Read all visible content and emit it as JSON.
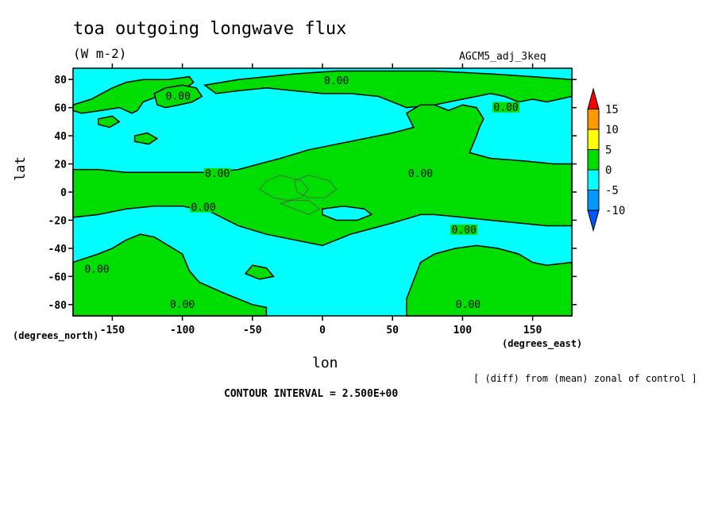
{
  "chart_data": {
    "type": "heatmap",
    "title": "toa outgoing longwave flux",
    "units": "(W m-2)",
    "run_label": "AGCM5_adj_3keq",
    "xlabel": "lon",
    "ylabel": "lat",
    "x_units_label": "(degrees_east)",
    "y_units_label": "(degrees_north)",
    "note": "[ (diff) from (mean) zonal of control ]",
    "contour_interval_text": "CONTOUR INTERVAL = 2.500E+00",
    "xlim": [
      -178,
      178
    ],
    "ylim": [
      -88,
      88
    ],
    "x_ticks": [
      -150,
      -100,
      -50,
      0,
      50,
      100,
      150
    ],
    "y_ticks": [
      80,
      60,
      40,
      20,
      0,
      -20,
      -40,
      -60,
      -80
    ],
    "colorbar": {
      "ticks": [
        15,
        10,
        5,
        0,
        -5,
        -10
      ],
      "bins": [
        {
          "from": 15,
          "to": 20,
          "color": "#ff0000"
        },
        {
          "from": 10,
          "to": 15,
          "color": "#ff9900"
        },
        {
          "from": 5,
          "to": 10,
          "color": "#ffff00"
        },
        {
          "from": 0,
          "to": 5,
          "color": "#00dd00"
        },
        {
          "from": -5,
          "to": 0,
          "color": "#00ffff"
        },
        {
          "from": -10,
          "to": -5,
          "color": "#0099ff"
        },
        {
          "from": -15,
          "to": -10,
          "color": "#0055ff"
        }
      ]
    },
    "contour_labels": [
      {
        "text": "0.00",
        "lon": 10,
        "lat": 79
      },
      {
        "text": "0.00",
        "lon": -103,
        "lat": 68
      },
      {
        "text": "0.00",
        "lon": 131,
        "lat": 60
      },
      {
        "text": "0.00",
        "lon": -75,
        "lat": 13
      },
      {
        "text": "0.00",
        "lon": 70,
        "lat": 13
      },
      {
        "text": "0.00",
        "lon": -85,
        "lat": -11
      },
      {
        "text": "0.00",
        "lon": 101,
        "lat": -27
      },
      {
        "text": "0.00",
        "lon": -161,
        "lat": -55
      },
      {
        "text": "0.00",
        "lon": -100,
        "lat": -80
      },
      {
        "text": "0.00",
        "lon": 104,
        "lat": -80
      }
    ],
    "positive_regions_lonlat": [
      [
        [
          -178,
          62
        ],
        [
          -165,
          66
        ],
        [
          -150,
          74
        ],
        [
          -140,
          78
        ],
        [
          -128,
          80
        ],
        [
          -110,
          80
        ],
        [
          -95,
          82
        ],
        [
          -92,
          78
        ],
        [
          -100,
          72
        ],
        [
          -112,
          70
        ],
        [
          -120,
          67
        ],
        [
          -128,
          64
        ],
        [
          -132,
          58
        ],
        [
          -136,
          56
        ],
        [
          -145,
          60
        ],
        [
          -158,
          58
        ],
        [
          -172,
          56
        ],
        [
          -178,
          58
        ]
      ],
      [
        [
          -120,
          70
        ],
        [
          -112,
          74
        ],
        [
          -100,
          76
        ],
        [
          -90,
          74
        ],
        [
          -86,
          68
        ],
        [
          -93,
          64
        ],
        [
          -102,
          62
        ],
        [
          -112,
          60
        ],
        [
          -118,
          62
        ]
      ],
      [
        [
          -84,
          76
        ],
        [
          -60,
          80
        ],
        [
          -20,
          84
        ],
        [
          10,
          86
        ],
        [
          40,
          86
        ],
        [
          80,
          86
        ],
        [
          120,
          84
        ],
        [
          150,
          82
        ],
        [
          178,
          80
        ],
        [
          178,
          68
        ],
        [
          160,
          64
        ],
        [
          150,
          66
        ],
        [
          140,
          64
        ],
        [
          130,
          68
        ],
        [
          120,
          70
        ],
        [
          100,
          66
        ],
        [
          80,
          62
        ],
        [
          60,
          60
        ],
        [
          50,
          64
        ],
        [
          40,
          68
        ],
        [
          20,
          70
        ],
        [
          0,
          70
        ],
        [
          -20,
          72
        ],
        [
          -40,
          74
        ],
        [
          -60,
          72
        ],
        [
          -76,
          70
        ]
      ],
      [
        [
          -160,
          52
        ],
        [
          -150,
          54
        ],
        [
          -145,
          50
        ],
        [
          -152,
          46
        ],
        [
          -160,
          48
        ]
      ],
      [
        [
          -134,
          40
        ],
        [
          -125,
          42
        ],
        [
          -118,
          38
        ],
        [
          -124,
          34
        ],
        [
          -134,
          36
        ]
      ],
      [
        [
          -178,
          16
        ],
        [
          -160,
          16
        ],
        [
          -140,
          14
        ],
        [
          -120,
          14
        ],
        [
          -100,
          14
        ],
        [
          -80,
          14
        ],
        [
          -60,
          16
        ],
        [
          -45,
          20
        ],
        [
          -30,
          24
        ],
        [
          -10,
          30
        ],
        [
          10,
          34
        ],
        [
          30,
          38
        ],
        [
          50,
          42
        ],
        [
          65,
          46
        ],
        [
          60,
          56
        ],
        [
          70,
          62
        ],
        [
          80,
          62
        ],
        [
          90,
          58
        ],
        [
          100,
          62
        ],
        [
          110,
          60
        ],
        [
          115,
          52
        ],
        [
          112,
          46
        ],
        [
          110,
          40
        ],
        [
          105,
          28
        ],
        [
          120,
          24
        ],
        [
          145,
          22
        ],
        [
          165,
          20
        ],
        [
          178,
          20
        ],
        [
          178,
          -24
        ],
        [
          160,
          -24
        ],
        [
          140,
          -22
        ],
        [
          120,
          -20
        ],
        [
          100,
          -18
        ],
        [
          80,
          -16
        ],
        [
          70,
          -16
        ],
        [
          50,
          -22
        ],
        [
          35,
          -26
        ],
        [
          20,
          -30
        ],
        [
          0,
          -38
        ],
        [
          -20,
          -34
        ],
        [
          -40,
          -30
        ],
        [
          -60,
          -24
        ],
        [
          -80,
          -14
        ],
        [
          -100,
          -10
        ],
        [
          -120,
          -10
        ],
        [
          -140,
          -12
        ],
        [
          -160,
          -16
        ],
        [
          -178,
          -18
        ]
      ],
      [
        [
          -178,
          -50
        ],
        [
          -160,
          -44
        ],
        [
          -150,
          -40
        ],
        [
          -140,
          -34
        ],
        [
          -130,
          -30
        ],
        [
          -120,
          -32
        ],
        [
          -110,
          -38
        ],
        [
          -100,
          -44
        ],
        [
          -95,
          -56
        ],
        [
          -88,
          -64
        ],
        [
          -70,
          -72
        ],
        [
          -60,
          -76
        ],
        [
          -50,
          -80
        ],
        [
          -40,
          -82
        ],
        [
          -40,
          -88
        ],
        [
          -178,
          -88
        ]
      ],
      [
        [
          -50,
          -52
        ],
        [
          -40,
          -54
        ],
        [
          -35,
          -60
        ],
        [
          -45,
          -62
        ],
        [
          -55,
          -58
        ]
      ],
      [
        [
          60,
          -76
        ],
        [
          70,
          -50
        ],
        [
          80,
          -44
        ],
        [
          95,
          -40
        ],
        [
          110,
          -38
        ],
        [
          125,
          -40
        ],
        [
          140,
          -44
        ],
        [
          150,
          -50
        ],
        [
          160,
          -52
        ],
        [
          178,
          -50
        ],
        [
          178,
          -88
        ],
        [
          60,
          -88
        ]
      ]
    ],
    "inner_contours_lonlat": [
      [
        [
          -45,
          2
        ],
        [
          -40,
          8
        ],
        [
          -30,
          12
        ],
        [
          -15,
          8
        ],
        [
          -10,
          2
        ],
        [
          -15,
          -4
        ],
        [
          -25,
          -6
        ],
        [
          -35,
          -4
        ]
      ],
      [
        [
          -20,
          8
        ],
        [
          -10,
          12
        ],
        [
          5,
          8
        ],
        [
          10,
          2
        ],
        [
          2,
          -4
        ],
        [
          -10,
          -4
        ],
        [
          -18,
          0
        ]
      ],
      [
        [
          -30,
          -8
        ],
        [
          -20,
          -12
        ],
        [
          -10,
          -16
        ],
        [
          -2,
          -12
        ],
        [
          -10,
          -6
        ],
        [
          -22,
          -6
        ]
      ]
    ],
    "negative_islands_lonlat": [
      [
        [
          0,
          -12
        ],
        [
          15,
          -10
        ],
        [
          30,
          -12
        ],
        [
          35,
          -16
        ],
        [
          25,
          -20
        ],
        [
          10,
          -20
        ],
        [
          0,
          -16
        ]
      ]
    ]
  }
}
